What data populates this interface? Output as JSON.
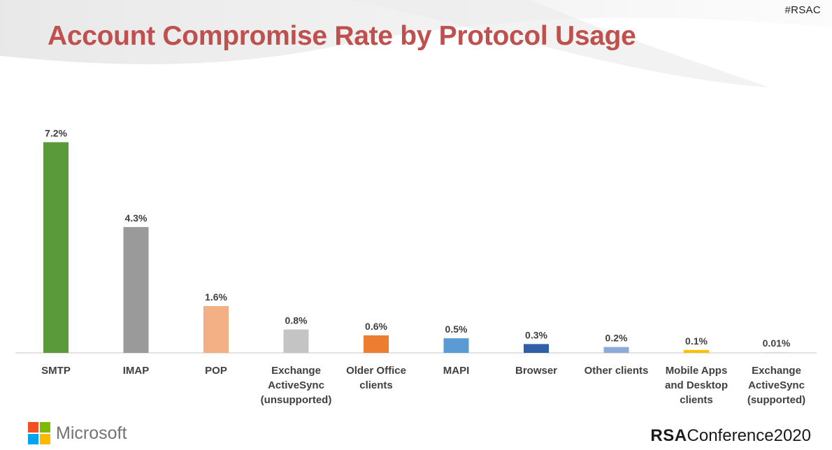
{
  "header": {
    "hashtag": "#RSAC",
    "title": "Account Compromise Rate by Protocol Usage"
  },
  "chart_data": {
    "type": "bar",
    "title": "Account Compromise Rate by Protocol Usage",
    "xlabel": "",
    "ylabel": "",
    "ylim": [
      0,
      8
    ],
    "grid": false,
    "categories": [
      "SMTP",
      "IMAP",
      "POP",
      "Exchange ActiveSync (unsupported)",
      "Older Office clients",
      "MAPI",
      "Browser",
      "Other clients",
      "Mobile Apps and Desktop clients",
      "Exchange ActiveSync (supported)"
    ],
    "category_lines": [
      [
        "SMTP"
      ],
      [
        "IMAP"
      ],
      [
        "POP"
      ],
      [
        "Exchange",
        "ActiveSync",
        "(unsupported)"
      ],
      [
        "Older Office",
        "clients"
      ],
      [
        "MAPI"
      ],
      [
        "Browser"
      ],
      [
        "Other clients"
      ],
      [
        "Mobile Apps",
        "and Desktop",
        "clients"
      ],
      [
        "Exchange",
        "ActiveSync",
        "(supported)"
      ]
    ],
    "values": [
      7.2,
      4.3,
      1.6,
      0.8,
      0.6,
      0.5,
      0.3,
      0.2,
      0.1,
      0.01
    ],
    "data_labels": [
      "7.2%",
      "4.3%",
      "1.6%",
      "0.8%",
      "0.6%",
      "0.5%",
      "0.3%",
      "0.2%",
      "0.1%",
      "0.01%"
    ],
    "colors": [
      "#5b9a3b",
      "#9a9a9a",
      "#f2b084",
      "#c4c4c4",
      "#ed7d31",
      "#5b9bd5",
      "#2e5fa8",
      "#8eaadb",
      "#ffc000",
      "#d9d9d9"
    ]
  },
  "footer": {
    "microsoft_label": "Microsoft",
    "microsoft_colors": [
      "#f25022",
      "#7fba00",
      "#00a4ef",
      "#ffb900"
    ],
    "rsa_mark": "RSA",
    "rsa_text": "Conference2020"
  }
}
